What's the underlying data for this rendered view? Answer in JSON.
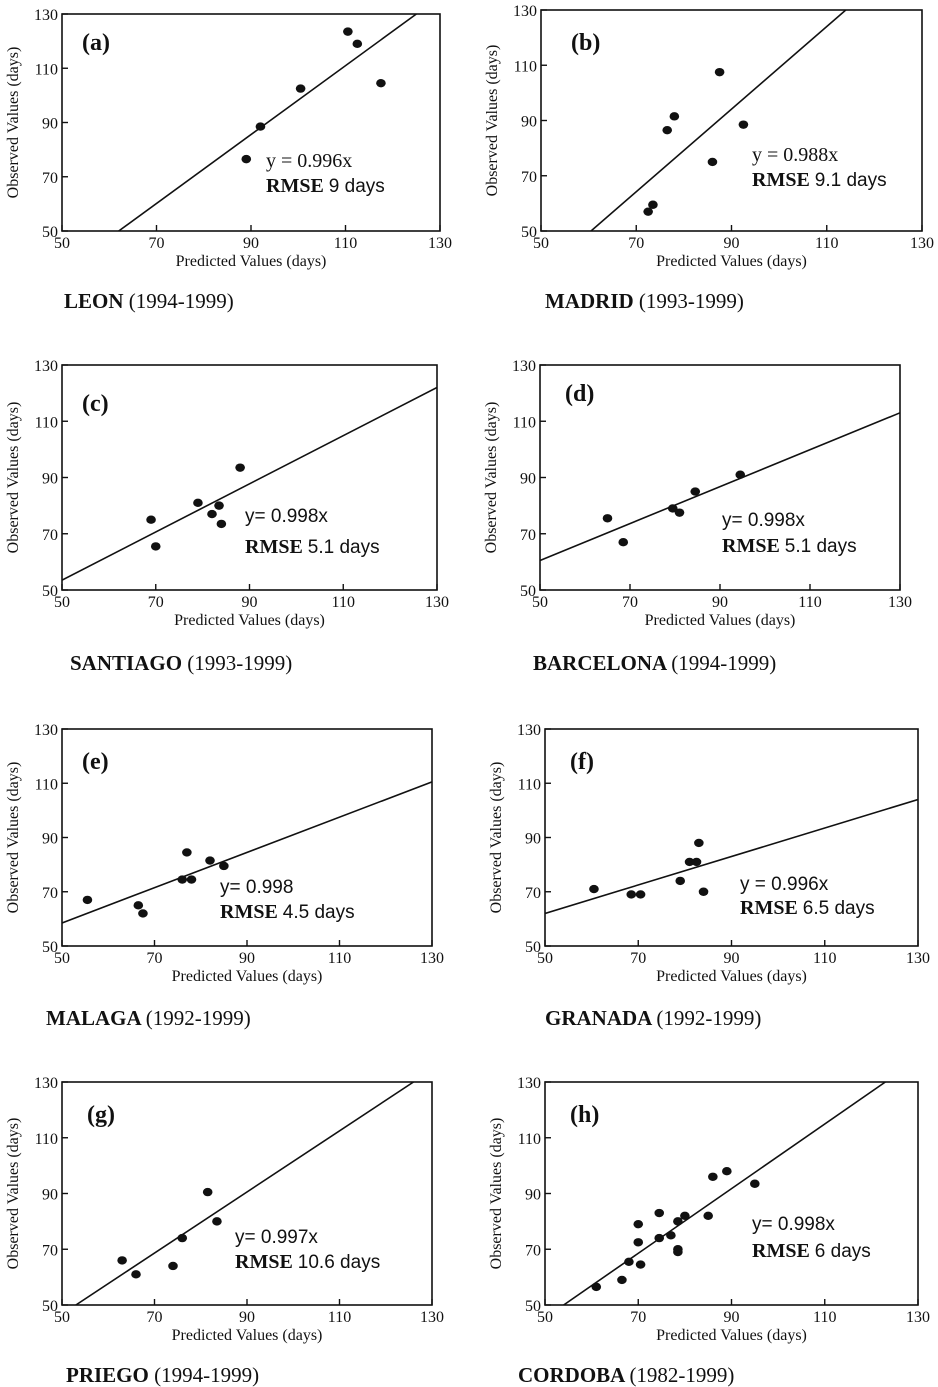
{
  "chart_data": [
    {
      "type": "scatter",
      "panel_label": "(a)",
      "site": "LEON",
      "years": "(1994-1999)",
      "xlabel": "Predicted Values (days)",
      "ylabel": "Observed Values (days)",
      "xlim": [
        50,
        130
      ],
      "ylim": [
        50,
        130
      ],
      "xticks": [
        50,
        70,
        90,
        110,
        130
      ],
      "yticks": [
        50,
        70,
        90,
        110,
        130
      ],
      "equation": "y = 0.996x",
      "rmse_label": "RMSE",
      "rmse_value": "9 days",
      "fit_line": {
        "x": [
          62,
          125
        ],
        "y": [
          50,
          130
        ]
      },
      "points": {
        "x": [
          89,
          92,
          100.5,
          110.5,
          112.5,
          117.5
        ],
        "y": [
          76.5,
          88.5,
          102.5,
          123.5,
          119,
          104.5
        ]
      }
    },
    {
      "type": "scatter",
      "panel_label": "(b)",
      "site": "MADRID",
      "years": "(1993-1999)",
      "xlabel": "Predicted Values (days)",
      "ylabel": "Observed Values (days)",
      "xlim": [
        50,
        130
      ],
      "ylim": [
        50,
        130
      ],
      "xticks": [
        50,
        70,
        90,
        110,
        130
      ],
      "yticks": [
        50,
        70,
        90,
        110,
        130
      ],
      "equation": "y = 0.988x",
      "rmse_label": "RMSE",
      "rmse_value": "9.1 days",
      "fit_line": {
        "x": [
          60.5,
          114
        ],
        "y": [
          50,
          130
        ]
      },
      "points": {
        "x": [
          72.5,
          73.5,
          76.5,
          78,
          86,
          87.5,
          92.5
        ],
        "y": [
          57,
          59.5,
          86.5,
          91.5,
          75,
          107.5,
          88.5
        ]
      }
    },
    {
      "type": "scatter",
      "panel_label": "(c)",
      "site": "SANTIAGO",
      "years": "(1993-1999)",
      "xlabel": "Predicted Values (days)",
      "ylabel": "Observed Values (days)",
      "xlim": [
        50,
        130
      ],
      "ylim": [
        50,
        130
      ],
      "xticks": [
        50,
        70,
        90,
        110,
        130
      ],
      "yticks": [
        50,
        70,
        90,
        110,
        130
      ],
      "equation": "y= 0.998x",
      "rmse_label": "RMSE",
      "rmse_value": "5.1 days",
      "fit_line": {
        "x": [
          50,
          130
        ],
        "y": [
          53.5,
          122
        ]
      },
      "points": {
        "x": [
          69,
          70,
          79,
          82,
          83.5,
          84,
          88
        ],
        "y": [
          75,
          65.5,
          81,
          77,
          80,
          73.5,
          93.5
        ]
      }
    },
    {
      "type": "scatter",
      "panel_label": "(d)",
      "site": "BARCELONA",
      "years": "(1994-1999)",
      "xlabel": "Predicted Values (days)",
      "ylabel": "Observed Values (days)",
      "xlim": [
        50,
        130
      ],
      "ylim": [
        50,
        130
      ],
      "xticks": [
        50,
        70,
        90,
        110,
        130
      ],
      "yticks": [
        50,
        70,
        90,
        110,
        130
      ],
      "equation": "y= 0.998x",
      "rmse_label": "RMSE",
      "rmse_value": "5.1 days",
      "fit_line": {
        "x": [
          50,
          130
        ],
        "y": [
          60.5,
          113
        ]
      },
      "points": {
        "x": [
          65,
          68.5,
          79.5,
          81,
          84.5,
          94.5
        ],
        "y": [
          75.5,
          67,
          79,
          77.5,
          85,
          91
        ]
      }
    },
    {
      "type": "scatter",
      "panel_label": "(e)",
      "site": "MALAGA",
      "years": "(1992-1999)",
      "xlabel": "Predicted Values (days)",
      "ylabel": "Observed Values (days)",
      "xlim": [
        50,
        130
      ],
      "ylim": [
        50,
        130
      ],
      "xticks": [
        50,
        70,
        90,
        110,
        130
      ],
      "yticks": [
        50,
        70,
        90,
        110,
        130
      ],
      "equation": "y= 0.998",
      "rmse_label": "RMSE",
      "rmse_value": "4.5 days",
      "fit_line": {
        "x": [
          50,
          130
        ],
        "y": [
          58.5,
          110.5
        ]
      },
      "points": {
        "x": [
          55.5,
          66.5,
          67.5,
          76,
          77,
          78,
          82,
          85
        ],
        "y": [
          67,
          65,
          62,
          74.5,
          84.5,
          74.5,
          81.5,
          79.5
        ]
      }
    },
    {
      "type": "scatter",
      "panel_label": "(f)",
      "site": "GRANADA",
      "years": "(1992-1999)",
      "xlabel": "Predicted Values (days)",
      "ylabel": "Observed Values (days)",
      "xlim": [
        50,
        130
      ],
      "ylim": [
        50,
        130
      ],
      "xticks": [
        50,
        70,
        90,
        110,
        130
      ],
      "yticks": [
        50,
        70,
        90,
        110,
        130
      ],
      "equation": "y = 0.996x",
      "rmse_label": "RMSE",
      "rmse_value": "6.5 days",
      "fit_line": {
        "x": [
          50,
          130
        ],
        "y": [
          62,
          104
        ]
      },
      "points": {
        "x": [
          60.5,
          68.5,
          70.5,
          79,
          81,
          83,
          82.5,
          84
        ],
        "y": [
          71,
          69,
          69,
          74,
          81,
          88,
          81,
          70
        ]
      }
    },
    {
      "type": "scatter",
      "panel_label": "(g)",
      "site": "PRIEGO",
      "years": "(1994-1999)",
      "xlabel": "Predicted Values (days)",
      "ylabel": "Observed Values (days)",
      "xlim": [
        50,
        130
      ],
      "ylim": [
        50,
        130
      ],
      "xticks": [
        50,
        70,
        90,
        110,
        130
      ],
      "yticks": [
        50,
        70,
        90,
        110,
        130
      ],
      "equation": "y= 0.997x",
      "rmse_label": "RMSE",
      "rmse_value": "10.6 days",
      "fit_line": {
        "x": [
          53,
          126
        ],
        "y": [
          50,
          130
        ]
      },
      "points": {
        "x": [
          63,
          66,
          74,
          76,
          81.5,
          83.5
        ],
        "y": [
          66,
          61,
          64,
          74,
          90.5,
          80
        ]
      }
    },
    {
      "type": "scatter",
      "panel_label": "(h)",
      "site": "CORDOBA",
      "years": "(1982-1999)",
      "xlabel": "Predicted Values (days)",
      "ylabel": "Observed Values (days)",
      "xlim": [
        50,
        130
      ],
      "ylim": [
        50,
        130
      ],
      "xticks": [
        50,
        70,
        90,
        110,
        130
      ],
      "yticks": [
        50,
        70,
        90,
        110,
        130
      ],
      "equation": "y= 0.998x",
      "rmse_label": "RMSE",
      "rmse_value": "6 days",
      "fit_line": {
        "x": [
          54,
          123
        ],
        "y": [
          50,
          130
        ]
      },
      "points": {
        "x": [
          61,
          66.5,
          68,
          70,
          70,
          70.5,
          74.5,
          74.5,
          77,
          78.5,
          78.5,
          78.5,
          80,
          85,
          86,
          89,
          95
        ],
        "y": [
          56.5,
          59,
          65.5,
          72.5,
          79,
          64.5,
          74,
          83,
          75,
          80,
          70,
          69,
          82,
          82,
          96,
          98,
          93.5
        ]
      }
    }
  ]
}
